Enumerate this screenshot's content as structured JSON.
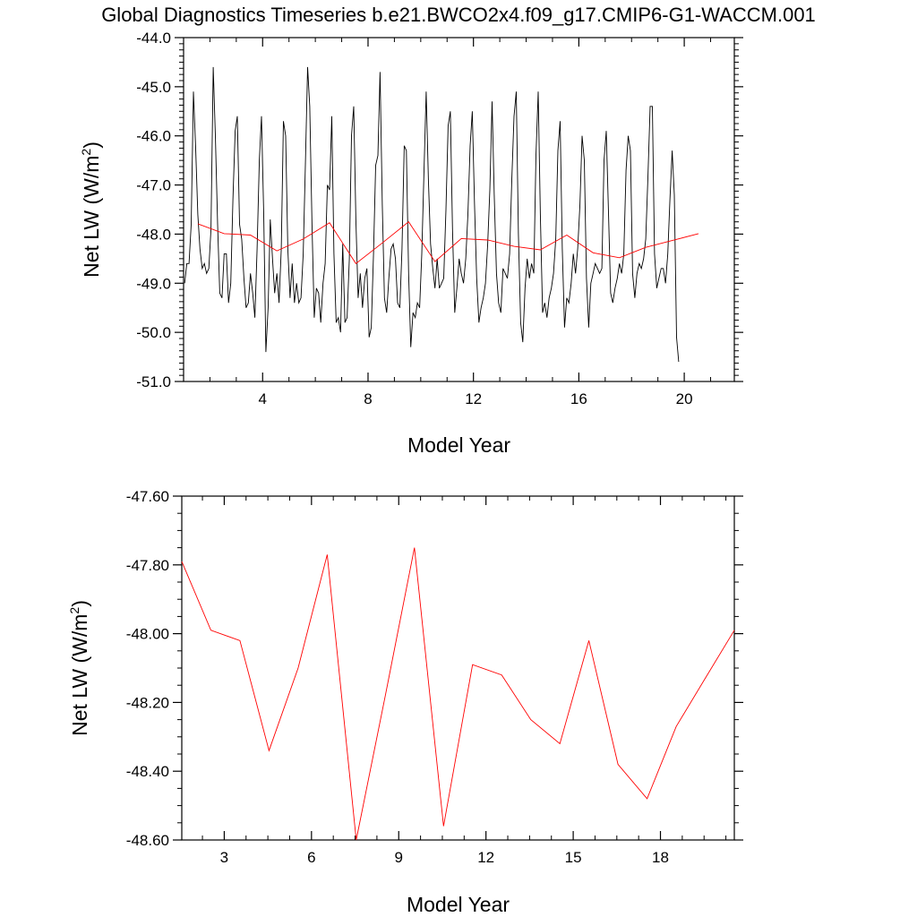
{
  "title": "Global Diagnostics Timeseries b.e21.BWCO2x4.f09_g17.CMIP6-G1-WACCM.001",
  "colors": {
    "monthly": "#000000",
    "annual": "#ff0000",
    "axes": "#000000"
  },
  "chart_data": [
    {
      "type": "line",
      "xlabel": "Model Year",
      "ylabel": "Net LW (W/m",
      "ylabel_sup": "2",
      "ylabel_end": ")",
      "xlim": [
        1.0,
        21.9
      ],
      "ylim": [
        -51.0,
        -44.0
      ],
      "xticks": [
        4,
        8,
        12,
        16,
        20
      ],
      "xtick_labels": [
        "4",
        "8",
        "12",
        "16",
        "20"
      ],
      "yticks": [
        -51.0,
        -50.0,
        -49.0,
        -48.0,
        -47.0,
        -46.0,
        -45.0,
        -44.0
      ],
      "ytick_labels": [
        "-51.0",
        "-50.0",
        "-49.0",
        "-48.0",
        "-47.0",
        "-46.0",
        "-45.0",
        "-44.0"
      ],
      "grid": false,
      "series": [
        {
          "kind": "monthly",
          "x0": 1.04,
          "dx": 0.0833333,
          "values": [
            -49.0,
            -48.6,
            -48.6,
            -47.8,
            -45.1,
            -46.2,
            -47.6,
            -48.3,
            -48.7,
            -48.6,
            -48.8,
            -48.7,
            -47.9,
            -44.6,
            -46.0,
            -47.8,
            -49.2,
            -49.3,
            -48.4,
            -48.4,
            -49.4,
            -49.0,
            -47.3,
            -45.9,
            -45.6,
            -47.8,
            -48.1,
            -48.9,
            -49.5,
            -49.4,
            -48.8,
            -49.2,
            -49.7,
            -48.3,
            -46.5,
            -45.6,
            -47.6,
            -50.4,
            -49.5,
            -47.7,
            -48.5,
            -49.2,
            -48.8,
            -49.4,
            -48.3,
            -45.7,
            -46.0,
            -48.3,
            -49.3,
            -48.6,
            -49.4,
            -49.0,
            -49.4,
            -49.3,
            -48.4,
            -46.6,
            -44.6,
            -45.4,
            -47.8,
            -49.7,
            -49.1,
            -49.2,
            -49.8,
            -49.0,
            -48.6,
            -47.0,
            -47.1,
            -45.6,
            -48.4,
            -49.8,
            -49.7,
            -50.0,
            -48.2,
            -49.8,
            -49.7,
            -48.5,
            -46.0,
            -45.4,
            -47.7,
            -49.3,
            -48.8,
            -49.5,
            -48.9,
            -48.7,
            -50.1,
            -49.9,
            -48.4,
            -46.6,
            -46.4,
            -44.7,
            -47.4,
            -49.3,
            -49.6,
            -48.9,
            -48.3,
            -48.2,
            -48.5,
            -49.4,
            -49.5,
            -48.3,
            -46.2,
            -46.3,
            -48.8,
            -50.3,
            -49.6,
            -49.7,
            -49.4,
            -49.5,
            -48.4,
            -46.7,
            -45.1,
            -46.9,
            -48.2,
            -48.7,
            -49.1,
            -48.5,
            -49.1,
            -49.0,
            -48.9,
            -47.5,
            -45.8,
            -45.5,
            -47.9,
            -49.6,
            -49.1,
            -48.5,
            -48.8,
            -49.0,
            -48.5,
            -47.6,
            -46.2,
            -45.5,
            -47.4,
            -48.9,
            -49.8,
            -49.5,
            -49.3,
            -49.0,
            -48.2,
            -47.1,
            -45.3,
            -47.2,
            -48.8,
            -49.4,
            -49.6,
            -48.7,
            -48.8,
            -48.9,
            -48.4,
            -46.9,
            -45.6,
            -45.1,
            -48.0,
            -49.8,
            -50.2,
            -49.1,
            -48.5,
            -48.9,
            -48.6,
            -48.8,
            -46.4,
            -45.1,
            -47.6,
            -49.6,
            -49.4,
            -49.7,
            -49.3,
            -49.1,
            -48.8,
            -48.1,
            -46.3,
            -45.7,
            -48.3,
            -49.9,
            -49.3,
            -49.4,
            -49.0,
            -48.4,
            -48.8,
            -48.3,
            -47.4,
            -46.0,
            -46.5,
            -48.9,
            -49.9,
            -49.0,
            -48.8,
            -48.6,
            -48.7,
            -48.8,
            -48.7,
            -46.5,
            -45.9,
            -47.5,
            -49.2,
            -49.4,
            -49.1,
            -48.9,
            -48.6,
            -48.8,
            -48.4,
            -46.7,
            -46.0,
            -46.3,
            -48.8,
            -49.3,
            -48.8,
            -48.6,
            -48.7,
            -48.5,
            -48.1,
            -46.8,
            -45.4,
            -45.4,
            -48.4,
            -49.1,
            -48.9,
            -48.7,
            -48.7,
            -49.0,
            -48.4,
            -47.3,
            -46.3,
            -47.2,
            -50.1,
            -50.6
          ]
        },
        {
          "kind": "annual",
          "x": [
            1.54,
            2.54,
            3.54,
            4.54,
            5.54,
            6.54,
            7.54,
            8.54,
            9.54,
            10.54,
            11.54,
            12.54,
            13.54,
            14.54,
            15.54,
            16.54,
            17.54,
            18.54,
            19.54,
            20.54
          ],
          "values": [
            -47.79,
            -47.99,
            -48.02,
            -48.34,
            -48.1,
            -47.77,
            -48.6,
            -48.18,
            -47.75,
            -48.56,
            -48.09,
            -48.12,
            -48.25,
            -48.32,
            -48.02,
            -48.38,
            -48.48,
            -48.27,
            -48.13,
            -47.99
          ]
        }
      ]
    },
    {
      "type": "line",
      "xlabel": "Model Year",
      "ylabel": "Net LW (W/m",
      "ylabel_sup": "2",
      "ylabel_end": ")",
      "xlim": [
        1.54,
        20.54
      ],
      "ylim": [
        -48.6,
        -47.6
      ],
      "xticks": [
        3,
        6,
        9,
        12,
        15,
        18
      ],
      "xtick_labels": [
        "3",
        "6",
        "9",
        "12",
        "15",
        "18"
      ],
      "yticks": [
        -48.6,
        -48.4,
        -48.2,
        -48.0,
        -47.8,
        -47.6
      ],
      "ytick_labels": [
        "-48.60",
        "-48.40",
        "-48.20",
        "-48.00",
        "-47.80",
        "-47.60"
      ],
      "grid": false,
      "series": [
        {
          "kind": "annual",
          "x": [
            1.54,
            2.54,
            3.54,
            4.54,
            5.54,
            6.54,
            7.54,
            8.54,
            9.54,
            10.54,
            11.54,
            12.54,
            13.54,
            14.54,
            15.54,
            16.54,
            17.54,
            18.54,
            19.54,
            20.54
          ],
          "values": [
            -47.79,
            -47.99,
            -48.02,
            -48.34,
            -48.1,
            -47.77,
            -48.6,
            -48.18,
            -47.75,
            -48.56,
            -48.09,
            -48.12,
            -48.25,
            -48.32,
            -48.02,
            -48.38,
            -48.48,
            -48.27,
            -48.13,
            -47.99
          ]
        }
      ]
    }
  ]
}
